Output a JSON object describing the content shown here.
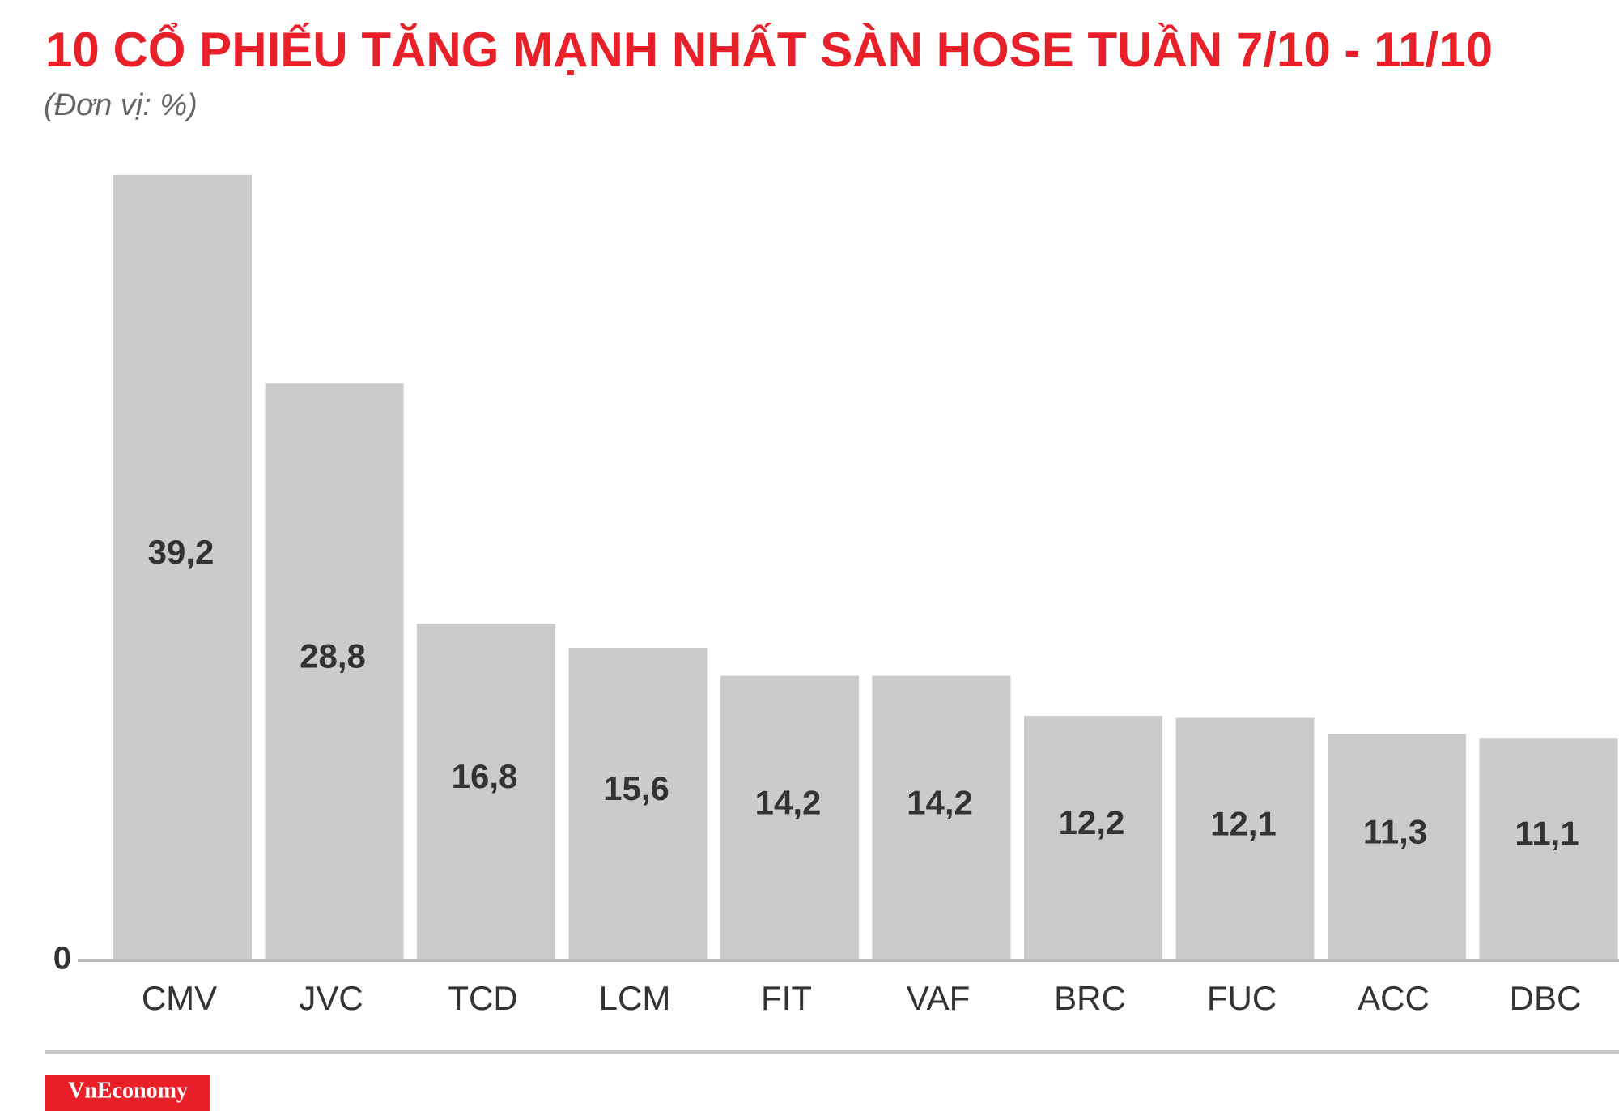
{
  "chart_data": {
    "type": "bar",
    "title": "10 CỔ PHIẾU TĂNG MẠNH NHẤT SÀN HOSE TUẦN 7/10 - 11/10",
    "subtitle": "(Đơn vị: %)",
    "categories": [
      "CMV",
      "JVC",
      "TCD",
      "LCM",
      "FIT",
      "VAF",
      "BRC",
      "FUC",
      "ACC",
      "DBC"
    ],
    "values": [
      39.2,
      28.8,
      16.8,
      15.6,
      14.2,
      14.2,
      12.2,
      12.1,
      11.3,
      11.1
    ],
    "value_labels": [
      "39,2",
      "28,8",
      "16,8",
      "15,6",
      "14,2",
      "14,2",
      "12,2",
      "12,1",
      "11,3",
      "11,1"
    ],
    "color": "#cccacb",
    "ylim": [
      0,
      40
    ],
    "yticks": [
      0
    ]
  },
  "footer": {
    "brand": "VnEconomy"
  }
}
